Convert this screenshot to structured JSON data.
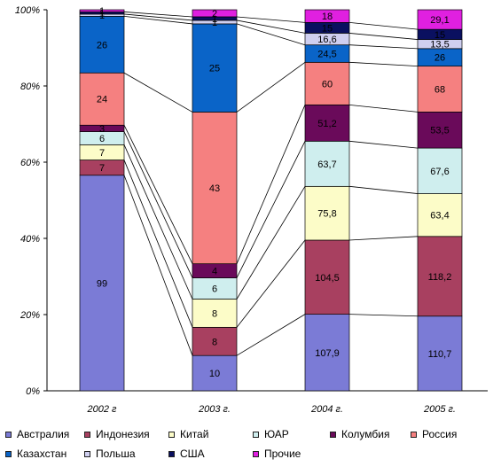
{
  "chart_data": {
    "type": "bar",
    "stacked": "percent",
    "categories": [
      "2002 г",
      "2003 г.",
      "2004 г.",
      "2005 г."
    ],
    "ylim": [
      0,
      100
    ],
    "yticks": [
      "0%",
      "20%",
      "40%",
      "60%",
      "80%",
      "100%"
    ],
    "grid": false,
    "legend_position": "bottom",
    "series": [
      {
        "name": "Австралия",
        "color": "#7b7bd6",
        "values": [
          99,
          10,
          107.9,
          110.7
        ],
        "labels": [
          "99",
          "10",
          "107,9",
          "110,7"
        ]
      },
      {
        "name": "Индонезия",
        "color": "#a84060",
        "values": [
          7,
          8,
          104.5,
          118.2
        ],
        "labels": [
          "7",
          "8",
          "104,5",
          "118,2"
        ]
      },
      {
        "name": "Китай",
        "color": "#fcfcc8",
        "values": [
          7,
          8,
          75.8,
          63.4
        ],
        "labels": [
          "7",
          "8",
          "75,8",
          "63,4"
        ]
      },
      {
        "name": "ЮАР",
        "color": "#cfeeee",
        "values": [
          6,
          6,
          63.7,
          67.6
        ],
        "labels": [
          "6",
          "6",
          "63,7",
          "67,6"
        ]
      },
      {
        "name": "Колумбия",
        "color": "#6a0a5a",
        "values": [
          3,
          4,
          51.2,
          53.5
        ],
        "labels": [
          "3",
          "4",
          "51,2",
          "53,5"
        ]
      },
      {
        "name": "Россия",
        "color": "#f58080",
        "values": [
          24,
          43,
          60,
          68
        ],
        "labels": [
          "24",
          "43",
          "60",
          "68"
        ]
      },
      {
        "name": "Казахстан",
        "color": "#0a64c8",
        "values": [
          26,
          25,
          24.5,
          26
        ],
        "labels": [
          "26",
          "25",
          "24,5",
          "26"
        ]
      },
      {
        "name": "Польша",
        "color": "#cfcff0",
        "values": [
          1,
          1,
          16.6,
          13.5
        ],
        "labels": [
          "1",
          "1",
          "16,6",
          "13,5"
        ]
      },
      {
        "name": "США",
        "color": "#0a1060",
        "values": [
          1,
          1,
          15,
          15
        ],
        "labels": [
          "1",
          "1",
          "15",
          "15"
        ]
      },
      {
        "name": "Прочие",
        "color": "#e020e0",
        "values": [
          1,
          2,
          18,
          29.1
        ],
        "labels": [
          "1",
          "2",
          "18",
          "29,1"
        ]
      }
    ]
  }
}
